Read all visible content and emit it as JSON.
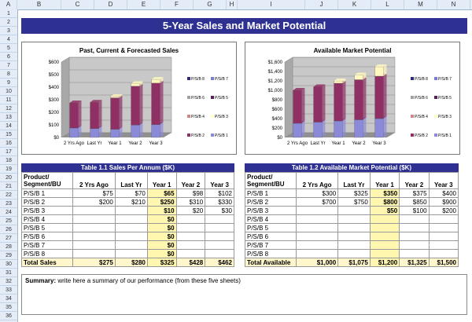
{
  "sheet": {
    "columns": [
      "A",
      "B",
      "C",
      "D",
      "E",
      "F",
      "G",
      "H",
      "I",
      "J",
      "K",
      "L",
      "M",
      "N"
    ],
    "rows": [
      "1",
      "2",
      "3",
      "4",
      "5",
      "6",
      "7",
      "8",
      "9",
      "10",
      "11",
      "12",
      "13",
      "14",
      "15",
      "16",
      "17",
      "18",
      "19",
      "20",
      "21",
      "22",
      "23",
      "24",
      "25",
      "26",
      "27",
      "28",
      "29",
      "30",
      "31",
      "32",
      "33",
      "34",
      "35",
      "36"
    ],
    "title": "5-Year Sales and Market Potential"
  },
  "chart_data": [
    {
      "type": "bar",
      "stacked": true,
      "title": "Past, Current & Forecasted Sales",
      "categories": [
        "2 Yrs Ago",
        "Last Yr",
        "Year 1",
        "Year 2",
        "Year 3"
      ],
      "ylim": [
        0,
        600
      ],
      "yticks": [
        "$0",
        "$100",
        "$200",
        "$300",
        "$400",
        "$500",
        "$600"
      ],
      "series": [
        {
          "name": "P/S/B 1",
          "values": [
            75,
            70,
            65,
            98,
            102
          ],
          "color": "#8a8ad8"
        },
        {
          "name": "P/S/B 2",
          "values": [
            200,
            210,
            250,
            310,
            330
          ],
          "color": "#8f2f64"
        },
        {
          "name": "P/S/B 3",
          "values": [
            0,
            0,
            10,
            20,
            30
          ],
          "color": "#fff7c0"
        }
      ],
      "legend": [
        "P/S/B 8",
        "P/S/B 7",
        "P/S/B 6",
        "P/S/B 5",
        "P/S/B 4",
        "P/S/B 3",
        "P/S/B 2",
        "P/S/B 1"
      ]
    },
    {
      "type": "bar",
      "stacked": true,
      "title": "Available Market Potential",
      "categories": [
        "2 Yrs Ago",
        "Last Yr",
        "Year 1",
        "Year 2",
        "Year 3"
      ],
      "ylim": [
        0,
        1600
      ],
      "yticks": [
        "$0",
        "$200",
        "$400",
        "$600",
        "$800",
        "$1,000",
        "$1,200",
        "$1,400",
        "$1,600"
      ],
      "series": [
        {
          "name": "P/S/B 1",
          "values": [
            300,
            325,
            350,
            375,
            400
          ],
          "color": "#8a8ad8"
        },
        {
          "name": "P/S/B 2",
          "values": [
            700,
            750,
            800,
            850,
            900
          ],
          "color": "#8f2f64"
        },
        {
          "name": "P/S/B 3",
          "values": [
            0,
            0,
            50,
            100,
            200
          ],
          "color": "#fff7c0"
        }
      ],
      "legend": [
        "P/S/B 8",
        "P/S/B 7",
        "P/S/B 6",
        "P/S/B 5",
        "P/S/B 4",
        "P/S/B 3",
        "P/S/B 2",
        "P/S/B 1"
      ]
    }
  ],
  "legend_colors": [
    "#2b2b7a",
    "#7a7ad0",
    "#a0a0a0",
    "#552255",
    "#cc8888",
    "#ffffcc",
    "#8f2f64",
    "#8a8ad8"
  ],
  "table1": {
    "caption": "Table 1.1 Sales Per Annum ($K)",
    "header": [
      "Product/ Segment/BU",
      "2 Yrs Ago",
      "Last Yr",
      "Year 1",
      "Year 2",
      "Year 3"
    ],
    "rows": [
      [
        "P/S/B 1",
        "$75",
        "$70",
        "$65",
        "$98",
        "$102"
      ],
      [
        "P/S/B 2",
        "$200",
        "$210",
        "$250",
        "$310",
        "$330"
      ],
      [
        "P/S/B 3",
        "",
        "",
        "$10",
        "$20",
        "$30"
      ],
      [
        "P/S/B 4",
        "",
        "",
        "$0",
        "",
        ""
      ],
      [
        "P/S/B 5",
        "",
        "",
        "$0",
        "",
        ""
      ],
      [
        "P/S/B 6",
        "",
        "",
        "$0",
        "",
        ""
      ],
      [
        "P/S/B 7",
        "",
        "",
        "$0",
        "",
        ""
      ],
      [
        "P/S/B 8",
        "",
        "",
        "$0",
        "",
        ""
      ]
    ],
    "total": [
      "Total Sales",
      "$275",
      "$280",
      "$325",
      "$428",
      "$462"
    ]
  },
  "table2": {
    "caption": "Table 1.2 Available Market Potential ($K)",
    "header": [
      "Product/ Segment/BU",
      "2 Yrs Ago",
      "Last Yr",
      "Year 1",
      "Year 2",
      "Year 3"
    ],
    "rows": [
      [
        "P/S/B 1",
        "$300",
        "$325",
        "$350",
        "$375",
        "$400"
      ],
      [
        "P/S/B 2",
        "$700",
        "$750",
        "$800",
        "$850",
        "$900"
      ],
      [
        "P/S/B 3",
        "",
        "",
        "$50",
        "$100",
        "$200"
      ],
      [
        "P/S/B 4",
        "",
        "",
        "",
        "",
        ""
      ],
      [
        "P/S/B 5",
        "",
        "",
        "",
        "",
        ""
      ],
      [
        "P/S/B 6",
        "",
        "",
        "",
        "",
        ""
      ],
      [
        "P/S/B 7",
        "",
        "",
        "",
        "",
        ""
      ],
      [
        "P/S/B 8",
        "",
        "",
        "",
        "",
        ""
      ]
    ],
    "total": [
      "Total Available",
      "$1,000",
      "$1,075",
      "$1,200",
      "$1,325",
      "$1,500"
    ]
  },
  "summary": {
    "label": "Summary:",
    "text": "write here a summary of our performance (from these five sheets)"
  }
}
